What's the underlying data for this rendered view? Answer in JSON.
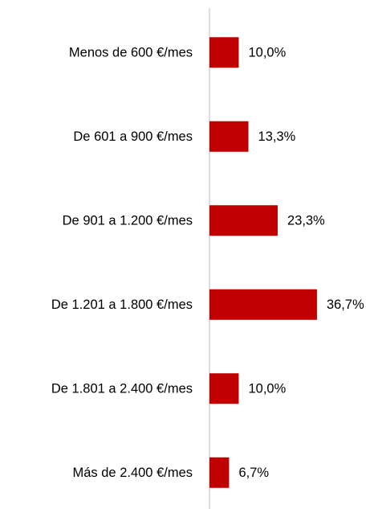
{
  "chart_data": {
    "type": "hbar",
    "categories": [
      "Menos de 600 €/mes",
      "De 601 a 900 €/mes",
      "De 901 a 1.200 €/mes",
      "De 1.201 a 1.800 €/mes",
      "De 1.801 a 2.400 €/mes",
      "Más de 2.400 €/mes"
    ],
    "values": [
      10.0,
      13.3,
      23.3,
      36.7,
      10.0,
      6.7
    ],
    "value_labels": [
      "10,0%",
      "13,3%",
      "23,3%",
      "36,7%",
      "10,0%",
      "6,7%"
    ],
    "color": "#c00000",
    "xlim": [
      0,
      60
    ]
  }
}
